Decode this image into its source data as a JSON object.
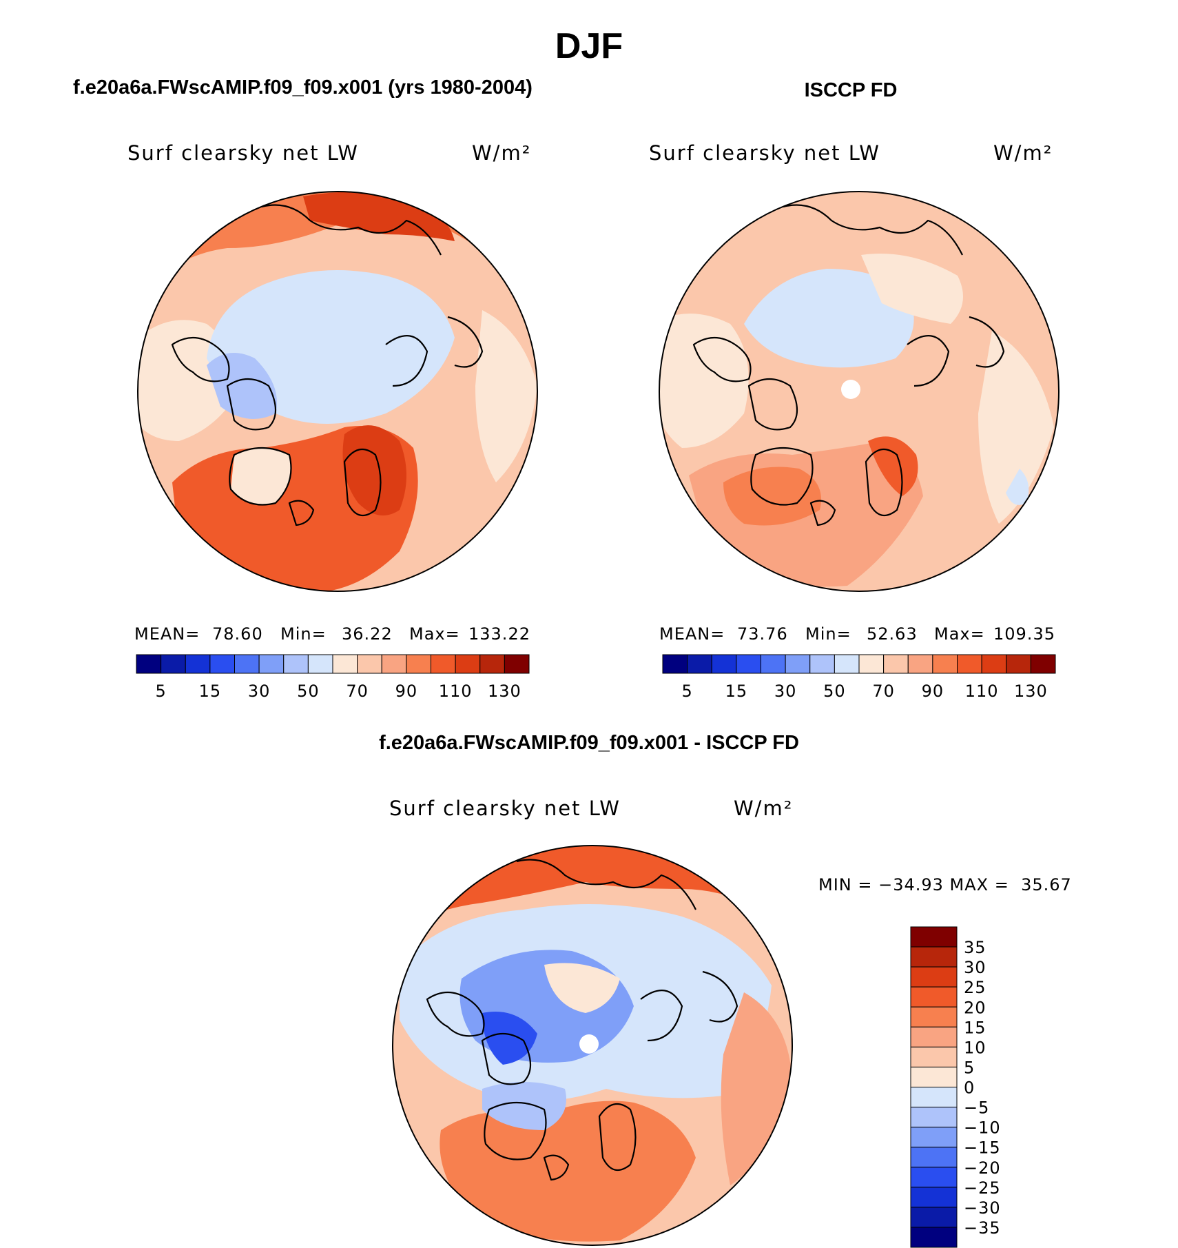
{
  "figure": {
    "title": "DJF",
    "left_title": "f.e20a6a.FWscAMIP.f09_f09.x001 (yrs 1980-2004)",
    "right_title": "ISCCP FD",
    "diff_title": "f.e20a6a.FWscAMIP.f09_f09.x001 - ISCCP FD"
  },
  "chart_data": [
    {
      "type": "heatmap",
      "projection": "north polar stereographic",
      "title": "f.e20a6a.FWscAMIP.f09_f09.x001 (yrs 1980-2004)",
      "variable": "Surf clearsky net LW",
      "units": "W/m²",
      "stats": {
        "mean_label": "MEAN=",
        "mean": "78.60",
        "min_label": "Min=",
        "min": "36.22",
        "max_label": "Max=",
        "max": "133.22"
      },
      "colorbar": {
        "orientation": "horizontal",
        "levels": [
          5,
          10,
          15,
          20,
          30,
          40,
          50,
          60,
          70,
          80,
          90,
          100,
          110,
          120,
          130
        ],
        "tick_labels": [
          "5",
          "15",
          "30",
          "50",
          "70",
          "90",
          "110",
          "130"
        ]
      }
    },
    {
      "type": "heatmap",
      "projection": "north polar stereographic",
      "title": "ISCCP FD",
      "variable": "Surf clearsky net LW",
      "units": "W/m²",
      "stats": {
        "mean_label": "MEAN=",
        "mean": "73.76",
        "min_label": "Min=",
        "min": "52.63",
        "max_label": "Max=",
        "max": "109.35"
      },
      "colorbar": {
        "orientation": "horizontal",
        "levels": [
          5,
          10,
          15,
          20,
          30,
          40,
          50,
          60,
          70,
          80,
          90,
          100,
          110,
          120,
          130
        ],
        "tick_labels": [
          "5",
          "15",
          "30",
          "50",
          "70",
          "90",
          "110",
          "130"
        ]
      }
    },
    {
      "type": "heatmap",
      "projection": "north polar stereographic",
      "title": "f.e20a6a.FWscAMIP.f09_f09.x001 - ISCCP FD",
      "variable": "Surf clearsky net LW",
      "units": "W/m²",
      "stats_text": "MIN = −34.93 MAX =  35.67",
      "colorbar": {
        "orientation": "vertical",
        "levels": [
          -35,
          -30,
          -25,
          -20,
          -15,
          -10,
          -5,
          0,
          5,
          10,
          15,
          20,
          25,
          30,
          35
        ],
        "tick_labels": [
          "35",
          "30",
          "25",
          "20",
          "15",
          "10",
          "5",
          "0",
          "−5",
          "−10",
          "−15",
          "−20",
          "−25",
          "−30",
          "−35"
        ]
      }
    }
  ],
  "colors": {
    "abs_scale": [
      "#00007f",
      "#0a1ba8",
      "#1432d6",
      "#2a4ef0",
      "#4d73f5",
      "#7f9ff8",
      "#aec3fa",
      "#d5e5fb",
      "#fce7d6",
      "#fbc7ab",
      "#f9a482",
      "#f7804f",
      "#f05a2a",
      "#dc3d14",
      "#b7260b",
      "#7f0000"
    ],
    "diff_scale": [
      "#00007f",
      "#0a1ba8",
      "#1432d6",
      "#2a4ef0",
      "#4d73f5",
      "#7f9ff8",
      "#aec3fa",
      "#d5e5fb",
      "#fce7d6",
      "#fbc7ab",
      "#f9a482",
      "#f7804f",
      "#f05a2a",
      "#dc3d14",
      "#b7260b",
      "#7f0000"
    ]
  }
}
